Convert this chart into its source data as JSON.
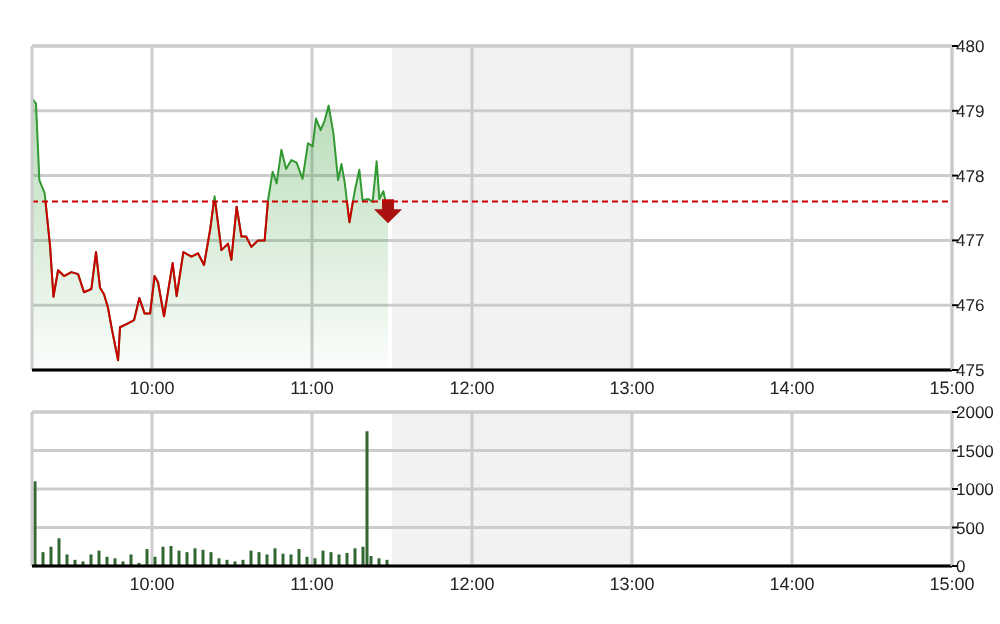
{
  "chart_data": [
    {
      "type": "area",
      "x": [
        9.25,
        9.275,
        9.296,
        9.329,
        9.363,
        9.384,
        9.413,
        9.45,
        9.496,
        9.538,
        9.575,
        9.621,
        9.65,
        9.675,
        9.7,
        9.725,
        9.75,
        9.788,
        9.8,
        9.85,
        9.888,
        9.921,
        9.954,
        9.988,
        10.016,
        10.038,
        10.075,
        10.129,
        10.154,
        10.196,
        10.246,
        10.288,
        10.325,
        10.363,
        10.391,
        10.434,
        10.475,
        10.496,
        10.529,
        10.559,
        10.588,
        10.621,
        10.663,
        10.704,
        10.725,
        10.754,
        10.779,
        10.809,
        10.838,
        10.871,
        10.904,
        10.941,
        10.975,
        11.004,
        11.025,
        11.054,
        11.079,
        11.104,
        11.134,
        11.163,
        11.184,
        11.204,
        11.234,
        11.266,
        11.296,
        11.316,
        11.35,
        11.379,
        11.404,
        11.421,
        11.446,
        11.475
      ],
      "series": [
        {
          "color": "#339933",
          "values": [
            479.19,
            479.11,
            477.93,
            477.73,
            476.91,
            476.13,
            476.54,
            476.45,
            476.51,
            476.48,
            476.2,
            476.25,
            476.82,
            476.27,
            476.17,
            475.96,
            475.62,
            475.15,
            475.66,
            475.72,
            475.77,
            476.11,
            475.87,
            475.87,
            476.45,
            476.35,
            475.83,
            476.65,
            476.14,
            476.82,
            476.75,
            476.8,
            476.62,
            477.16,
            477.68,
            476.85,
            476.95,
            476.7,
            477.52,
            477.06,
            477.06,
            476.9,
            477.0,
            477.0,
            477.62,
            478.06,
            477.88,
            478.4,
            478.1,
            478.24,
            478.2,
            477.95,
            478.5,
            478.45,
            478.88,
            478.7,
            478.85,
            479.08,
            478.65,
            477.93,
            478.18,
            477.9,
            477.28,
            477.75,
            478.09,
            477.62,
            477.64,
            477.6,
            478.22,
            477.64,
            477.76,
            477.42
          ]
        }
      ],
      "xlim": [
        9.25,
        15
      ],
      "xticks": [
        {
          "value": 10,
          "label": "10:00"
        },
        {
          "value": 11,
          "label": "11:00"
        },
        {
          "value": 12,
          "label": "12:00"
        },
        {
          "value": 13,
          "label": "13:00"
        },
        {
          "value": 14,
          "label": "14:00"
        },
        {
          "value": 15,
          "label": "15:00"
        }
      ],
      "ylim": [
        475,
        480
      ],
      "yticks": [
        475,
        476,
        477,
        478,
        479,
        480
      ],
      "grid": true,
      "ref_lines": [
        {
          "axis": "y",
          "value": 477.6,
          "color": "#cc0000",
          "line_style": "dashed"
        }
      ],
      "bands": [
        {
          "axis": "x",
          "from": 11.5,
          "to": 13,
          "color": "#f2f2f2"
        }
      ]
    },
    {
      "type": "bar",
      "x": [
        9.25,
        9.3,
        9.35,
        9.4,
        9.45,
        9.5,
        9.55,
        9.6,
        9.65,
        9.7,
        9.75,
        9.8,
        9.85,
        9.9,
        9.95,
        10.0,
        10.05,
        10.1,
        10.15,
        10.2,
        10.25,
        10.3,
        10.35,
        10.4,
        10.45,
        10.5,
        10.55,
        10.6,
        10.65,
        10.7,
        10.75,
        10.8,
        10.85,
        10.9,
        10.95,
        11.0,
        11.05,
        11.1,
        11.15,
        11.2,
        11.25,
        11.3,
        11.325,
        11.35,
        11.4,
        11.45
      ],
      "values": [
        1100,
        180,
        250,
        360,
        150,
        80,
        60,
        150,
        200,
        120,
        100,
        60,
        150,
        40,
        220,
        120,
        250,
        260,
        200,
        180,
        230,
        210,
        180,
        100,
        80,
        60,
        80,
        200,
        180,
        150,
        230,
        160,
        150,
        220,
        120,
        100,
        200,
        180,
        150,
        170,
        230,
        250,
        1750,
        130,
        100,
        80
      ],
      "color": "#336633",
      "xlim": [
        9.25,
        15
      ],
      "xticks": [
        {
          "value": 10,
          "label": "10:00"
        },
        {
          "value": 11,
          "label": "11:00"
        },
        {
          "value": 12,
          "label": "12:00"
        },
        {
          "value": 13,
          "label": "13:00"
        },
        {
          "value": 14,
          "label": "14:00"
        },
        {
          "value": 15,
          "label": "15:00"
        }
      ],
      "ylim": [
        0,
        2000
      ],
      "yticks": [
        0,
        500,
        1000,
        1500,
        2000
      ],
      "grid": true,
      "bands": [
        {
          "axis": "x",
          "from": 11.5,
          "to": 13,
          "color": "#f2f2f2"
        }
      ]
    }
  ]
}
